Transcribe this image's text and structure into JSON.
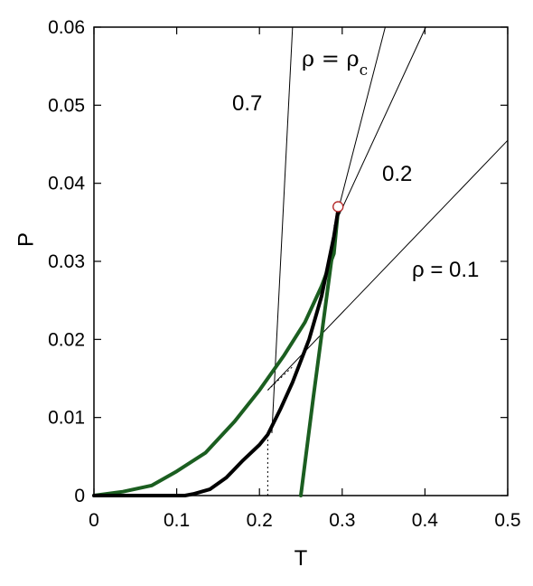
{
  "chart_data": {
    "type": "line",
    "title": "",
    "xlabel": "T",
    "ylabel": "P",
    "xlim": [
      0,
      0.5
    ],
    "ylim": [
      0,
      0.06
    ],
    "x_ticks": [
      "0",
      "0.1",
      "0.2",
      "0.3",
      "0.4",
      "0.5"
    ],
    "y_ticks": [
      "0",
      "0.01",
      "0.02",
      "0.03",
      "0.04",
      "0.05",
      "0.06"
    ],
    "x_tick_values": [
      0,
      0.1,
      0.2,
      0.3,
      0.4,
      0.5
    ],
    "y_tick_values": [
      0,
      0.01,
      0.02,
      0.03,
      0.04,
      0.05,
      0.06
    ],
    "grid": false,
    "series": [
      {
        "name": "",
        "color": "#1b5e20",
        "points": [
          [
            0,
            0
          ],
          [
            0.035,
            0.0005
          ],
          [
            0.07,
            0.0013
          ],
          [
            0.1,
            0.0031
          ],
          [
            0.135,
            0.0055
          ],
          [
            0.17,
            0.0095
          ],
          [
            0.2,
            0.0135
          ],
          [
            0.23,
            0.018
          ],
          [
            0.255,
            0.0222
          ],
          [
            0.275,
            0.0268
          ],
          [
            0.29,
            0.031
          ],
          [
            0.295,
            0.0365
          ]
        ]
      },
      {
        "name": "",
        "color": "#1b5e20",
        "points": [
          [
            0.25,
            0
          ],
          [
            0.265,
            0.0125
          ],
          [
            0.28,
            0.0245
          ],
          [
            0.295,
            0.0365
          ]
        ]
      },
      {
        "name": "",
        "color": "#000000",
        "points": [
          [
            0,
            0
          ],
          [
            0.11,
            0
          ],
          [
            0.12,
            0.0002
          ],
          [
            0.14,
            0.0008
          ],
          [
            0.16,
            0.0023
          ],
          [
            0.18,
            0.0045
          ],
          [
            0.2,
            0.0065
          ],
          [
            0.21,
            0.0078
          ],
          [
            0.225,
            0.011
          ],
          [
            0.24,
            0.0145
          ],
          [
            0.26,
            0.02
          ],
          [
            0.275,
            0.0255
          ],
          [
            0.29,
            0.0332
          ],
          [
            0.295,
            0.0365
          ]
        ]
      }
    ],
    "isochores": [
      {
        "label": "0.7",
        "points": [
          [
            0.215,
            0.008
          ],
          [
            0.24,
            0.06
          ]
        ]
      },
      {
        "label": "ρ = ρc",
        "points": [
          [
            0.295,
            0.0365
          ],
          [
            0.352,
            0.06
          ]
        ]
      },
      {
        "label": "0.2",
        "points": [
          [
            0.29,
            0.0345
          ],
          [
            0.401,
            0.06
          ]
        ]
      },
      {
        "label": "ρ = 0.1",
        "points": [
          [
            0.21,
            0.0135
          ],
          [
            0.5,
            0.0455
          ]
        ]
      }
    ],
    "critical_point": {
      "x": 0.295,
      "y": 0.037
    },
    "dotted_lines": [
      [
        [
          0.21,
          0
        ],
        [
          0.21,
          0.0078
        ]
      ],
      [
        [
          0.21,
          0.0135
        ],
        [
          0.24,
          0.0165
        ]
      ]
    ]
  }
}
